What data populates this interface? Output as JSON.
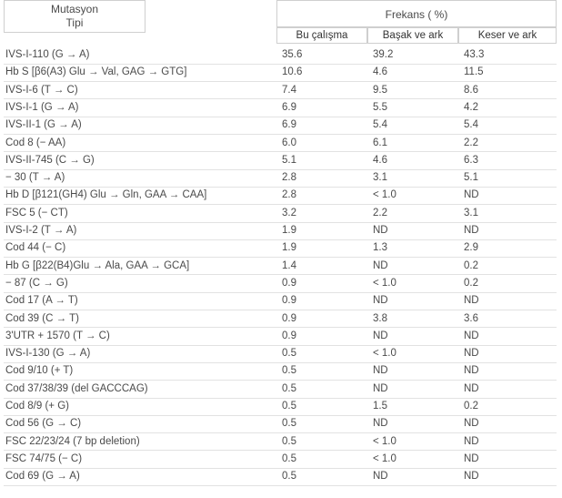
{
  "header": {
    "type_label": "Mutasyon\nTipi",
    "freq_label": "Frekans ( %)",
    "columns": [
      "Bu çalışma",
      "Başak ve ark",
      "Keser ve ark"
    ]
  },
  "table": {
    "rows": [
      [
        "IVS-I-110 (G → A)",
        "35.6",
        "39.2",
        "43.3"
      ],
      [
        "Hb S [β6(A3) Glu → Val, GAG → GTG]",
        "10.6",
        "4.6",
        "11.5"
      ],
      [
        "IVS-I-6 (T → C)",
        "7.4",
        "9.5",
        "8.6"
      ],
      [
        "IVS-I-1 (G → A)",
        "6.9",
        "5.5",
        "4.2"
      ],
      [
        "IVS-II-1 (G → A)",
        "6.9",
        "5.4",
        "5.4"
      ],
      [
        "Cod 8 (− AA)",
        "6.0",
        "6.1",
        "2.2"
      ],
      [
        "IVS-II-745 (C → G)",
        "5.1",
        "4.6",
        "6.3"
      ],
      [
        "− 30 (T → A)",
        "2.8",
        "3.1",
        "5.1"
      ],
      [
        "Hb D [β121(GH4) Glu → Gln, GAA → CAA]",
        "2.8",
        "< 1.0",
        "ND"
      ],
      [
        "FSC 5 (− CT)",
        "3.2",
        "2.2",
        "3.1"
      ],
      [
        "IVS-I-2 (T → A)",
        "1.9",
        "ND",
        "ND"
      ],
      [
        "Cod 44 (− C)",
        "1.9",
        "1.3",
        "2.9"
      ],
      [
        "Hb G [β22(B4)Glu → Ala, GAA → GCA]",
        "1.4",
        "ND",
        "0.2"
      ],
      [
        "− 87 (C → G)",
        "0.9",
        "< 1.0",
        "0.2"
      ],
      [
        "Cod 17 (A → T)",
        "0.9",
        "ND",
        "ND"
      ],
      [
        "Cod 39 (C → T)",
        "0.9",
        "3.8",
        "3.6"
      ],
      [
        "3'UTR + 1570 (T → C)",
        "0.9",
        "ND",
        "ND"
      ],
      [
        "IVS-I-130 (G → A)",
        "0.5",
        "< 1.0",
        "ND"
      ],
      [
        "Cod 9/10 (+ T)",
        "0.5",
        "ND",
        "ND"
      ],
      [
        "Cod 37/38/39 (del GACCCAG)",
        "0.5",
        "ND",
        "ND"
      ],
      [
        "Cod 8/9 (+ G)",
        "0.5",
        "1.5",
        "0.2"
      ],
      [
        "Cod 56 (G → C)",
        "0.5",
        "ND",
        "ND"
      ],
      [
        "FSC 22/23/24 (7 bp deletion)",
        "0.5",
        "< 1.0",
        "ND"
      ],
      [
        "FSC 74/75 (− C)",
        "0.5",
        "< 1.0",
        "ND"
      ],
      [
        "Cod 69 (G → A)",
        "0.5",
        "ND",
        "ND"
      ]
    ]
  }
}
